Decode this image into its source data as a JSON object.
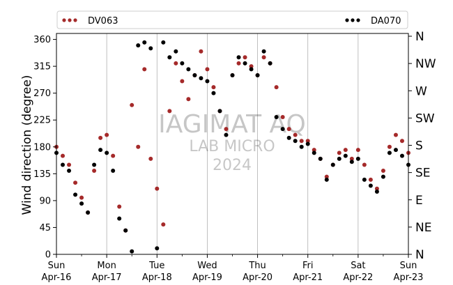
{
  "chart_data": {
    "type": "scatter",
    "ylabel": "Wind direction (degree)",
    "ylim": [
      0,
      370
    ],
    "xlim": [
      "2023-04-16",
      "2023-04-23"
    ],
    "yticks": [
      0,
      45,
      90,
      135,
      180,
      225,
      270,
      315,
      360
    ],
    "compass_ticks": [
      {
        "value": 0,
        "label": "N"
      },
      {
        "value": 45,
        "label": "NE"
      },
      {
        "value": 90,
        "label": "E"
      },
      {
        "value": 135,
        "label": "SE"
      },
      {
        "value": 180,
        "label": "S"
      },
      {
        "value": 225,
        "label": "SW"
      },
      {
        "value": 270,
        "label": "W"
      },
      {
        "value": 315,
        "label": "NW"
      },
      {
        "value": 360,
        "label": "N"
      }
    ],
    "xticks": [
      {
        "day": "Sun",
        "date": "Apr-16"
      },
      {
        "day": "Mon",
        "date": "Apr-17"
      },
      {
        "day": "Tue",
        "date": "Apr-18"
      },
      {
        "day": "Wed",
        "date": "Apr-19"
      },
      {
        "day": "Thu",
        "date": "Apr-20"
      },
      {
        "day": "Fri",
        "date": "Apr-21"
      },
      {
        "day": "Sat",
        "date": "Apr-22"
      },
      {
        "day": "Sun",
        "date": "Apr-23"
      }
    ],
    "grid": "vertical",
    "legend_position": "top",
    "watermark": [
      "IAGIMAT AQ",
      "LAB MICRO",
      "2024"
    ],
    "series": [
      {
        "name": "DV063",
        "color": "#a52a2a",
        "x": [
          "2023-04-16 00:00",
          "2023-04-16 03:00",
          "2023-04-16 06:00",
          "2023-04-16 09:00",
          "2023-04-16 12:00",
          "2023-04-16 15:00",
          "2023-04-16 18:00",
          "2023-04-16 21:00",
          "2023-04-17 00:00",
          "2023-04-17 03:00",
          "2023-04-17 06:00",
          "2023-04-17 09:00",
          "2023-04-17 12:00",
          "2023-04-17 15:00",
          "2023-04-17 18:00",
          "2023-04-17 21:00",
          "2023-04-18 00:00",
          "2023-04-18 03:00",
          "2023-04-18 06:00",
          "2023-04-18 09:00",
          "2023-04-18 12:00",
          "2023-04-18 15:00",
          "2023-04-18 18:00",
          "2023-04-18 21:00",
          "2023-04-19 00:00",
          "2023-04-19 03:00",
          "2023-04-19 06:00",
          "2023-04-19 09:00",
          "2023-04-19 12:00",
          "2023-04-19 15:00",
          "2023-04-19 18:00",
          "2023-04-19 21:00",
          "2023-04-20 00:00",
          "2023-04-20 03:00",
          "2023-04-20 06:00",
          "2023-04-20 09:00",
          "2023-04-20 12:00",
          "2023-04-20 15:00",
          "2023-04-20 18:00",
          "2023-04-20 21:00",
          "2023-04-21 00:00",
          "2023-04-21 03:00",
          "2023-04-21 06:00",
          "2023-04-21 09:00",
          "2023-04-21 12:00",
          "2023-04-21 15:00",
          "2023-04-21 18:00",
          "2023-04-21 21:00",
          "2023-04-22 00:00",
          "2023-04-22 03:00",
          "2023-04-22 06:00",
          "2023-04-22 09:00",
          "2023-04-22 12:00",
          "2023-04-22 15:00",
          "2023-04-22 18:00",
          "2023-04-22 21:00",
          "2023-04-23 00:00"
        ],
        "values": [
          180,
          165,
          150,
          120,
          95,
          70,
          140,
          195,
          200,
          165,
          80,
          40,
          250,
          180,
          310,
          160,
          110,
          50,
          240,
          320,
          290,
          260,
          300,
          340,
          310,
          280,
          240,
          210,
          300,
          320,
          330,
          315,
          300,
          330,
          320,
          280,
          230,
          210,
          200,
          190,
          190,
          175,
          160,
          130,
          150,
          170,
          175,
          160,
          175,
          150,
          125,
          110,
          140,
          180,
          200,
          190,
          170
        ]
      },
      {
        "name": "DA070",
        "color": "#000000",
        "x": [
          "2023-04-16 00:00",
          "2023-04-16 03:00",
          "2023-04-16 06:00",
          "2023-04-16 09:00",
          "2023-04-16 12:00",
          "2023-04-16 15:00",
          "2023-04-16 18:00",
          "2023-04-16 21:00",
          "2023-04-17 00:00",
          "2023-04-17 03:00",
          "2023-04-17 06:00",
          "2023-04-17 09:00",
          "2023-04-17 12:00",
          "2023-04-17 15:00",
          "2023-04-17 18:00",
          "2023-04-17 21:00",
          "2023-04-18 00:00",
          "2023-04-18 03:00",
          "2023-04-18 06:00",
          "2023-04-18 09:00",
          "2023-04-18 12:00",
          "2023-04-18 15:00",
          "2023-04-18 18:00",
          "2023-04-18 21:00",
          "2023-04-19 00:00",
          "2023-04-19 03:00",
          "2023-04-19 06:00",
          "2023-04-19 09:00",
          "2023-04-19 12:00",
          "2023-04-19 15:00",
          "2023-04-19 18:00",
          "2023-04-19 21:00",
          "2023-04-20 00:00",
          "2023-04-20 03:00",
          "2023-04-20 06:00",
          "2023-04-20 09:00",
          "2023-04-20 12:00",
          "2023-04-20 15:00",
          "2023-04-20 18:00",
          "2023-04-20 21:00",
          "2023-04-21 00:00",
          "2023-04-21 03:00",
          "2023-04-21 06:00",
          "2023-04-21 09:00",
          "2023-04-21 12:00",
          "2023-04-21 15:00",
          "2023-04-21 18:00",
          "2023-04-21 21:00",
          "2023-04-22 00:00",
          "2023-04-22 03:00",
          "2023-04-22 06:00",
          "2023-04-22 09:00",
          "2023-04-22 12:00",
          "2023-04-22 15:00",
          "2023-04-22 18:00",
          "2023-04-22 21:00",
          "2023-04-23 00:00"
        ],
        "values": [
          170,
          150,
          140,
          100,
          85,
          70,
          150,
          175,
          170,
          140,
          60,
          40,
          5,
          350,
          355,
          345,
          10,
          355,
          330,
          340,
          320,
          310,
          300,
          295,
          290,
          270,
          240,
          200,
          300,
          330,
          320,
          310,
          300,
          340,
          320,
          230,
          210,
          195,
          190,
          180,
          185,
          170,
          160,
          125,
          150,
          160,
          165,
          155,
          160,
          125,
          115,
          105,
          130,
          170,
          175,
          165,
          150
        ]
      }
    ]
  }
}
